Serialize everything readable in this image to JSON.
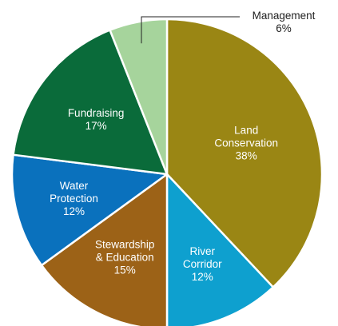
{
  "chart_data": {
    "type": "pie",
    "title": "",
    "start": "12 o'clock",
    "direction": "clockwise",
    "slices": [
      {
        "label_lines": [
          "Land",
          "Conservation"
        ],
        "value": 38,
        "value_label": "38%",
        "color": "#9a8614"
      },
      {
        "label_lines": [
          "River",
          "Corridor"
        ],
        "value": 12,
        "value_label": "12%",
        "color": "#0ea0cf"
      },
      {
        "label_lines": [
          "Stewardship",
          "& Education"
        ],
        "value": 15,
        "value_label": "15%",
        "color": "#9c6217"
      },
      {
        "label_lines": [
          "Water",
          "Protection"
        ],
        "value": 12,
        "value_label": "12%",
        "color": "#0a71bd"
      },
      {
        "label_lines": [
          "Fundraising"
        ],
        "value": 17,
        "value_label": "17%",
        "color": "#0a6b3a"
      },
      {
        "label_lines": [
          "Management"
        ],
        "value": 6,
        "value_label": "6%",
        "color": "#a6d49c",
        "label_outside": true
      }
    ]
  }
}
